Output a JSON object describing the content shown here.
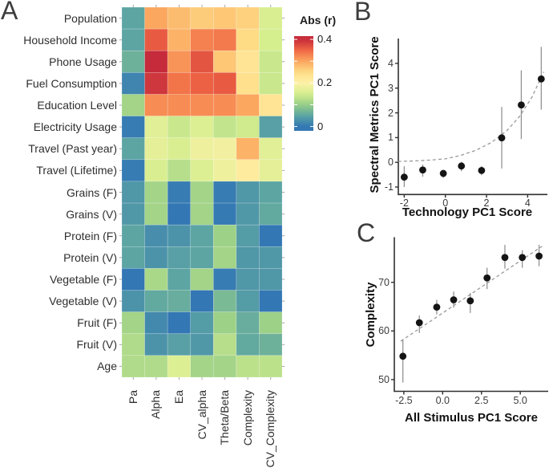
{
  "chart_data": [
    {
      "type": "heatmap",
      "panel": "A",
      "legend_title": "Abs (r)",
      "legend_ticks": [
        "0.4",
        "0.2",
        "0"
      ],
      "legend_tick_values": [
        0.4,
        0.2,
        0
      ],
      "rows": [
        "Population",
        "Household Income",
        "Phone Usage",
        "Fuel Consumption",
        "Education Level",
        "Electricity Usage",
        "Travel (Past year)",
        "Travel (Lifetime)",
        "Grains (F)",
        "Grains (V)",
        "Protein (F)",
        "Protein (V)",
        "Vegetable (F)",
        "Vegetable (V)",
        "Fruit (F)",
        "Fruit (V)",
        "Age"
      ],
      "columns": [
        "Pa",
        "Alpha",
        "Ea",
        "CV_alpha",
        "Theta/Beta",
        "Complexity",
        "CV_Complexity"
      ],
      "values": [
        [
          0.05,
          0.3,
          0.28,
          0.265,
          0.27,
          0.26,
          0.155
        ],
        [
          0.05,
          0.36,
          0.29,
          0.33,
          0.335,
          0.25,
          0.15
        ],
        [
          0.065,
          0.4,
          0.315,
          0.365,
          0.27,
          0.23,
          0.14
        ],
        [
          0.015,
          0.39,
          0.34,
          0.355,
          0.36,
          0.24,
          0.14
        ],
        [
          0.11,
          0.32,
          0.32,
          0.32,
          0.32,
          0.3,
          0.23
        ],
        [
          0.005,
          0.165,
          0.14,
          0.16,
          0.135,
          0.145,
          0.045
        ],
        [
          0.05,
          0.17,
          0.155,
          0.18,
          0.185,
          0.29,
          0.165
        ],
        [
          0.005,
          0.155,
          0.125,
          0.16,
          0.18,
          0.215,
          0.17
        ],
        [
          0.035,
          0.11,
          0.005,
          0.11,
          0.005,
          0.035,
          0.05
        ],
        [
          0.035,
          0.11,
          0.0,
          0.11,
          0.003,
          0.035,
          0.055
        ],
        [
          0.05,
          0.025,
          0.03,
          0.05,
          0.105,
          0.04,
          0.0
        ],
        [
          0.05,
          0.03,
          0.045,
          0.05,
          0.11,
          0.035,
          0.035
        ],
        [
          0.0,
          0.115,
          0.05,
          0.11,
          0.005,
          0.035,
          0.035
        ],
        [
          0.03,
          0.055,
          0.06,
          0.0,
          0.075,
          0.04,
          0.0
        ],
        [
          0.11,
          0.02,
          0.0,
          0.04,
          0.105,
          0.06,
          0.105
        ],
        [
          0.12,
          0.03,
          0.045,
          0.035,
          0.125,
          0.055,
          0.065
        ],
        [
          0.12,
          0.12,
          0.16,
          0.11,
          0.11,
          0.13,
          0.13
        ]
      ],
      "colorscale": [
        [
          0,
          "#3377B4"
        ],
        [
          0.05,
          "#5CA5A3"
        ],
        [
          0.1,
          "#97CE87"
        ],
        [
          0.15,
          "#D5EE8E"
        ],
        [
          0.2,
          "#FEF1A8"
        ],
        [
          0.25,
          "#FEDC86"
        ],
        [
          0.3,
          "#FBA75F"
        ],
        [
          0.35,
          "#F06744"
        ],
        [
          0.4,
          "#C62B3B"
        ]
      ]
    },
    {
      "type": "scatter",
      "panel": "B",
      "xlabel": "Technology PC1 Score",
      "ylabel": "Spectral Metrics PC1 Score",
      "xticks": [
        "-2",
        "0",
        "2",
        "4"
      ],
      "xtick_values": [
        -2,
        0,
        2,
        4
      ],
      "yticks": [
        "-1",
        "0",
        "1",
        "2",
        "3",
        "4"
      ],
      "ytick_values": [
        -1,
        0,
        1,
        2,
        3,
        4
      ],
      "xlim": [
        -2.29,
        4.96
      ],
      "ylim": [
        -1.3,
        5.0
      ],
      "points": [
        {
          "x": -2.0,
          "y": -0.6,
          "lo": -1.0,
          "hi": -0.16
        },
        {
          "x": -1.1,
          "y": -0.31,
          "lo": -0.58,
          "hi": -0.09
        },
        {
          "x": -0.1,
          "y": -0.45,
          "lo": -0.63,
          "hi": -0.31
        },
        {
          "x": 0.78,
          "y": -0.15,
          "lo": -0.36,
          "hi": 0.02
        },
        {
          "x": 1.76,
          "y": -0.33,
          "lo": -0.52,
          "hi": -0.15
        },
        {
          "x": 2.74,
          "y": 0.99,
          "lo": -0.25,
          "hi": 2.24
        },
        {
          "x": 3.69,
          "y": 2.32,
          "lo": 0.94,
          "hi": 3.72
        },
        {
          "x": 4.66,
          "y": 3.37,
          "lo": 2.13,
          "hi": 4.67
        }
      ],
      "trend": {
        "style": "dashed",
        "points": [
          [
            -2.3,
            0.035
          ],
          [
            -1.5,
            0.055
          ],
          [
            -0.75,
            0.09
          ],
          [
            0,
            0.14
          ],
          [
            0.75,
            0.28
          ],
          [
            1.5,
            0.49
          ],
          [
            2.25,
            0.81
          ],
          [
            3.0,
            1.29
          ],
          [
            3.6,
            1.85
          ],
          [
            4.2,
            2.62
          ],
          [
            4.78,
            3.66
          ]
        ]
      }
    },
    {
      "type": "scatter",
      "panel": "C",
      "xlabel": "All Stimulus PC1 Score",
      "ylabel": "Complexity",
      "xticks": [
        "-2.5",
        "0.0",
        "2.5",
        "5.0"
      ],
      "xtick_values": [
        -2.5,
        0.0,
        2.5,
        5.0
      ],
      "yticks": [
        "50",
        "60",
        "70"
      ],
      "ytick_values": [
        50,
        60,
        70
      ],
      "xlim": [
        -3.1,
        6.77
      ],
      "ylim": [
        47.6,
        79.3
      ],
      "points": [
        {
          "x": -2.56,
          "y": 54.8,
          "lo": 49.4,
          "hi": 58.3
        },
        {
          "x": -1.5,
          "y": 61.7,
          "lo": 59.6,
          "hi": 63.2
        },
        {
          "x": -0.38,
          "y": 64.9,
          "lo": 63.4,
          "hi": 66.4
        },
        {
          "x": 0.71,
          "y": 66.4,
          "lo": 64.8,
          "hi": 68.1
        },
        {
          "x": 1.78,
          "y": 66.2,
          "lo": 63.7,
          "hi": 67.8
        },
        {
          "x": 2.86,
          "y": 70.9,
          "lo": 68.6,
          "hi": 73.0
        },
        {
          "x": 4.01,
          "y": 75.1,
          "lo": 72.8,
          "hi": 77.7
        },
        {
          "x": 5.13,
          "y": 75.1,
          "lo": 73.0,
          "hi": 76.6
        },
        {
          "x": 6.21,
          "y": 75.4,
          "lo": 73.3,
          "hi": 77.7
        }
      ],
      "trend": {
        "style": "dashed",
        "points": [
          [
            -2.7,
            57.9
          ],
          [
            6.4,
            77.4
          ]
        ]
      }
    }
  ]
}
